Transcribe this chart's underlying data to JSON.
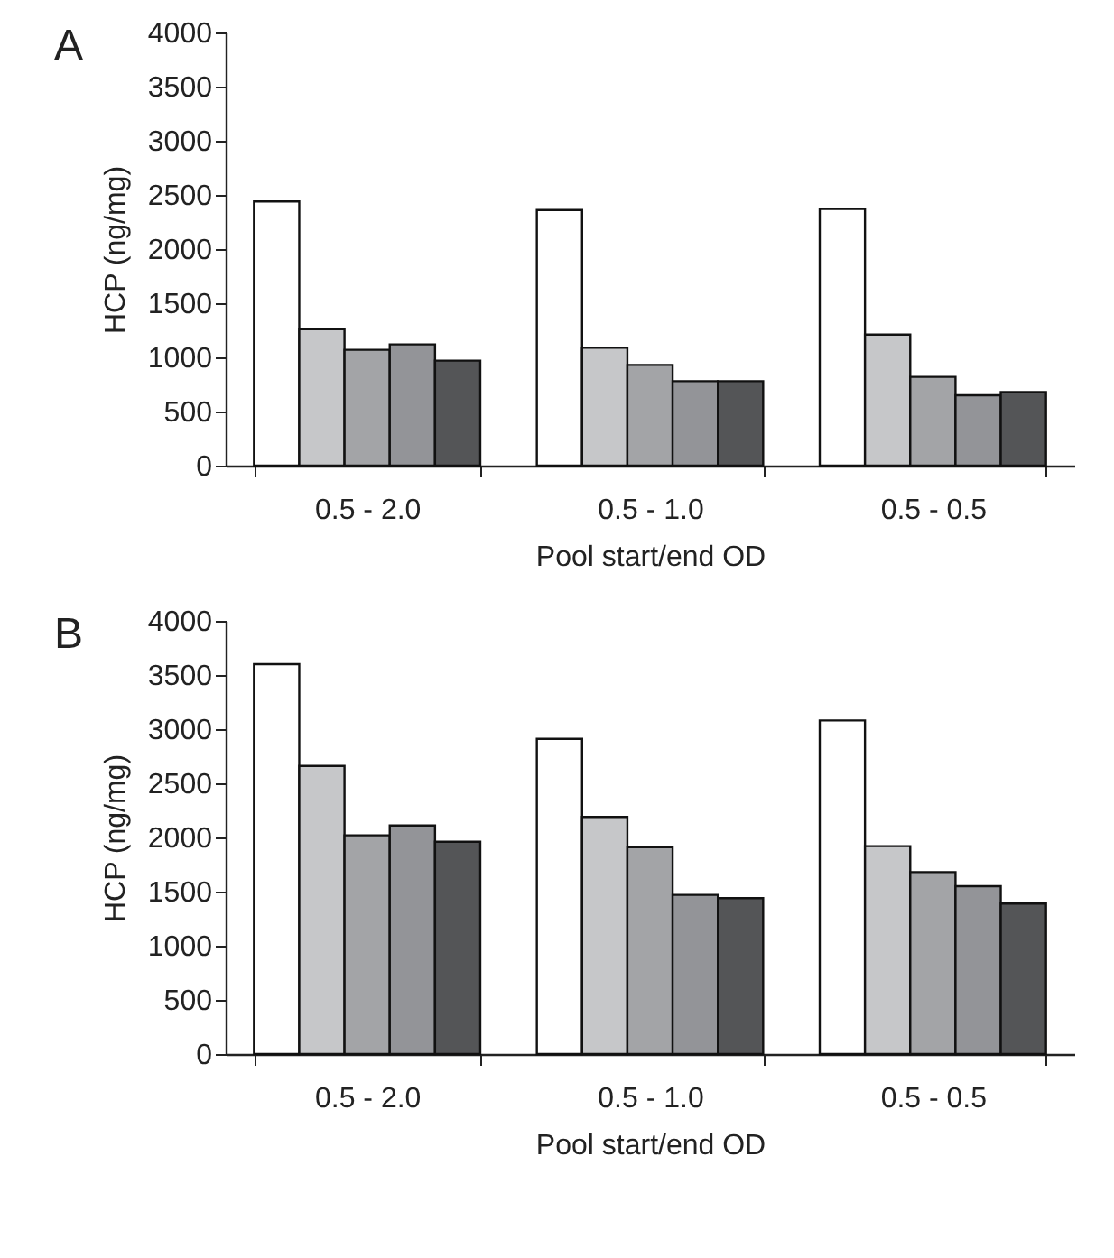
{
  "chart_data": [
    {
      "type": "bar",
      "title": "A",
      "xlabel": "Pool start/end OD",
      "ylabel": "HCP (ng/mg)",
      "categories": [
        "0.5 - 2.0",
        "0.5 - 1.0",
        "0.5 - 0.5"
      ],
      "ylim": [
        0,
        4000
      ],
      "yticks": [
        0,
        500,
        1000,
        1500,
        2000,
        2500,
        3000,
        3500,
        4000
      ],
      "series": [
        {
          "color": "#ffffff",
          "values": [
            2440,
            2360,
            2370
          ]
        },
        {
          "color": "#c6c7c9",
          "values": [
            1260,
            1090,
            1210
          ]
        },
        {
          "color": "#a3a4a7",
          "values": [
            1070,
            930,
            820
          ]
        },
        {
          "color": "#939498",
          "values": [
            1120,
            780,
            650
          ]
        },
        {
          "color": "#545557",
          "values": [
            970,
            780,
            680
          ]
        }
      ]
    },
    {
      "type": "bar",
      "title": "B",
      "xlabel": "Pool start/end OD",
      "ylabel": "HCP (ng/mg)",
      "categories": [
        "0.5 - 2.0",
        "0.5 - 1.0",
        "0.5 - 0.5"
      ],
      "ylim": [
        0,
        4000
      ],
      "yticks": [
        0,
        500,
        1000,
        1500,
        2000,
        2500,
        3000,
        3500,
        4000
      ],
      "series": [
        {
          "color": "#ffffff",
          "values": [
            3600,
            2910,
            3080
          ]
        },
        {
          "color": "#c6c7c9",
          "values": [
            2660,
            2190,
            1920
          ]
        },
        {
          "color": "#a3a4a7",
          "values": [
            2020,
            1910,
            1680
          ]
        },
        {
          "color": "#939498",
          "values": [
            2110,
            1470,
            1550
          ]
        },
        {
          "color": "#545557",
          "values": [
            1960,
            1440,
            1390
          ]
        }
      ]
    }
  ]
}
